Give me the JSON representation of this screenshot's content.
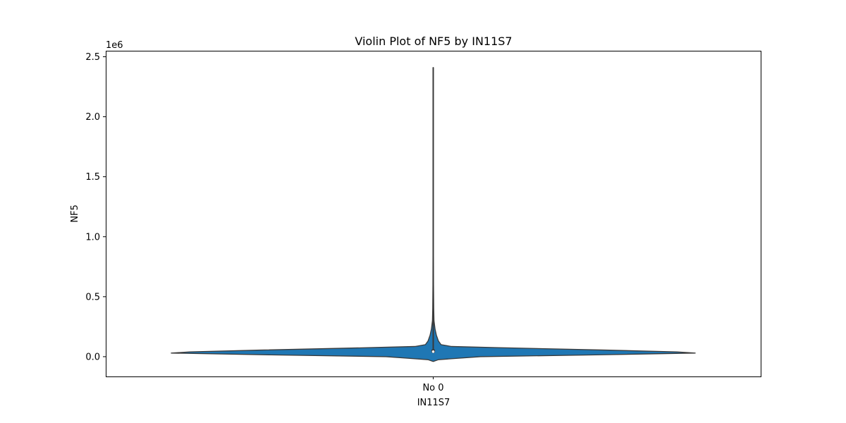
{
  "chart_data": {
    "type": "violin",
    "title": "Violin Plot of NF5 by IN11S7",
    "xlabel": "IN11S7",
    "ylabel": "NF5",
    "y_offset_label": "1e6",
    "categories": [
      "No 0"
    ],
    "ylim": [
      -165000,
      2550000
    ],
    "y_ticks": [
      0,
      500000,
      1000000,
      1500000,
      2000000,
      2500000
    ],
    "y_tick_labels": [
      "0.0",
      "0.5",
      "1.0",
      "1.5",
      "2.0",
      "2.5"
    ],
    "grid": false,
    "fill_color": "#1f77b4",
    "edge_color": "#3a3a3a",
    "violins": [
      {
        "category": "No 0",
        "min": 30000,
        "max": 2410000,
        "q1": 35000,
        "median": 42000,
        "q3": 60000,
        "whisker_max": 2410000,
        "density": [
          [
            -40000,
            0.0
          ],
          [
            -25000,
            0.02
          ],
          [
            0,
            0.18
          ],
          [
            15000,
            0.62
          ],
          [
            30000,
            1.0
          ],
          [
            40000,
            0.93
          ],
          [
            55000,
            0.66
          ],
          [
            75000,
            0.25
          ],
          [
            85000,
            0.07
          ],
          [
            100000,
            0.03
          ],
          [
            130000,
            0.02
          ],
          [
            180000,
            0.012
          ],
          [
            230000,
            0.007
          ],
          [
            300000,
            0.003
          ],
          [
            400000,
            0.002
          ],
          [
            600000,
            0.0012
          ],
          [
            1000000,
            0.0008
          ],
          [
            2000000,
            0.0006
          ],
          [
            2410000,
            0.0006
          ]
        ]
      }
    ]
  }
}
